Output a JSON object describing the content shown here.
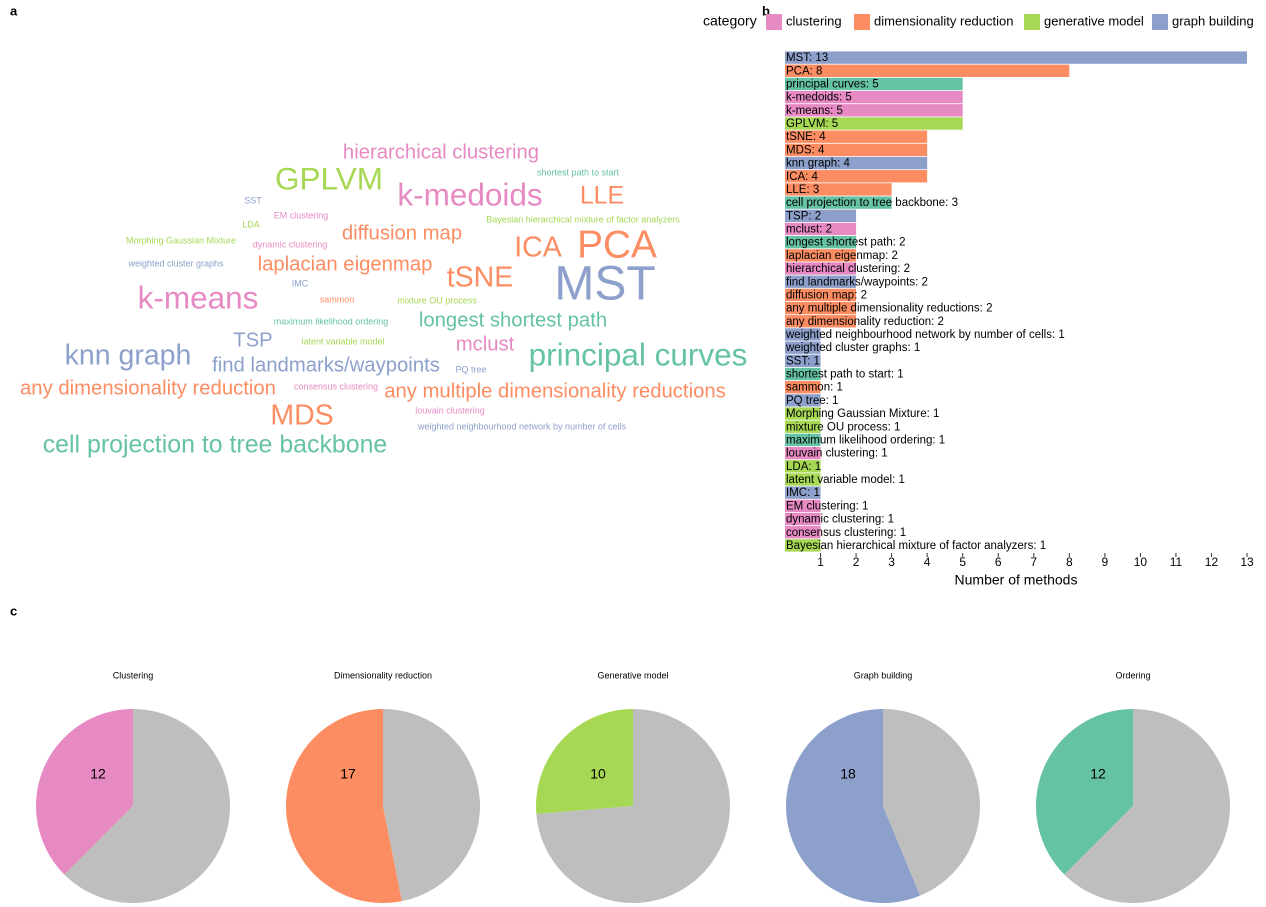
{
  "chart_data": [
    {
      "type": "wordcloud",
      "panel": "a",
      "words": [
        "MST",
        "PCA",
        "principal curves",
        "k-medoids",
        "k-means",
        "GPLVM",
        "tSNE",
        "MDS",
        "knn graph",
        "ICA",
        "LLE",
        "cell projection to tree backbone",
        "TSP",
        "mclust",
        "longest shortest path",
        "laplacian eigenmap",
        "hierarchical clustering",
        "find landmarks/waypoints",
        "diffusion map",
        "any multiple dimensionality reductions",
        "any dimensionality reduction",
        "weighted neighbourhood network by number of cells",
        "weighted cluster graphs",
        "SST",
        "shortest path to start",
        "sammon",
        "PQ tree",
        "Morphing Gaussian Mixture",
        "mixture OU process",
        "maximum likelihood ordering",
        "louvain clustering",
        "LDA",
        "latent variable model",
        "IMC",
        "EM clustering",
        "dynamic clustering",
        "consensus clustering",
        "Bayesian hierarchical mixture of factor analyzers"
      ],
      "values": [
        13,
        8,
        5,
        5,
        5,
        5,
        4,
        4,
        4,
        4,
        3,
        3,
        2,
        2,
        2,
        2,
        2,
        2,
        2,
        2,
        2,
        1,
        1,
        1,
        1,
        1,
        1,
        1,
        1,
        1,
        1,
        1,
        1,
        1,
        1,
        1,
        1,
        1
      ],
      "colors": [
        "#8da0cb",
        "#fc8d62",
        "#66c2a5",
        "#e78ac3",
        "#e78ac3",
        "#a6d854",
        "#fc8d62",
        "#fc8d62",
        "#8da0cb",
        "#fc8d62",
        "#fc8d62",
        "#66c2a5",
        "#8da0cb",
        "#e78ac3",
        "#66c2a5",
        "#fc8d62",
        "#e78ac3",
        "#8da0cb",
        "#fc8d62",
        "#fc8d62",
        "#fc8d62",
        "#8da0cb",
        "#8da0cb",
        "#8da0cb",
        "#66c2a5",
        "#fc8d62",
        "#8da0cb",
        "#a6d854",
        "#a6d854",
        "#66c2a5",
        "#e78ac3",
        "#a6d854",
        "#a6d854",
        "#8da0cb",
        "#e78ac3",
        "#e78ac3",
        "#e78ac3",
        "#a6d854"
      ]
    },
    {
      "type": "barh",
      "panel": "b",
      "values": [
        13,
        8,
        5,
        5,
        5,
        5,
        4,
        4,
        4,
        4,
        3,
        3,
        2,
        2,
        2,
        2,
        2,
        2,
        2,
        2,
        2,
        1,
        1,
        1,
        1,
        1,
        1,
        1,
        1,
        1,
        1,
        1,
        1,
        1,
        1,
        1,
        1,
        1
      ],
      "value_labels": [
        "MST: 13",
        "PCA: 8",
        "principal curves: 5",
        "k-medoids: 5",
        "k-means: 5",
        "GPLVM: 5",
        "tSNE: 4",
        "MDS: 4",
        "knn graph: 4",
        "ICA: 4",
        "LLE: 3",
        "cell projection to tree backbone: 3",
        "TSP: 2",
        "mclust: 2",
        "longest shortest path: 2",
        "laplacian eigenmap: 2",
        "hierarchical clustering: 2",
        "find landmarks/waypoints: 2",
        "diffusion map: 2",
        "any multiple dimensionality reductions: 2",
        "any dimensionality reduction: 2",
        "weighted neighbourhood network by number of cells: 1",
        "weighted cluster graphs: 1",
        "SST: 1",
        "shortest path to start: 1",
        "sammon: 1",
        "PQ tree: 1",
        "Morphing Gaussian Mixture: 1",
        "mixture OU process: 1",
        "maximum likelihood ordering: 1",
        "louvain clustering: 1",
        "LDA: 1",
        "latent variable model: 1",
        "IMC: 1",
        "EM clustering: 1",
        "dynamic clustering: 1",
        "consensus clustering: 1",
        "Bayesian hierarchical mixture of factor analyzers: 1"
      ],
      "colors": [
        "#8da0cb",
        "#fc8d62",
        "#66c2a5",
        "#e78ac3",
        "#e78ac3",
        "#a6d854",
        "#fc8d62",
        "#fc8d62",
        "#8da0cb",
        "#fc8d62",
        "#fc8d62",
        "#66c2a5",
        "#8da0cb",
        "#e78ac3",
        "#66c2a5",
        "#fc8d62",
        "#e78ac3",
        "#8da0cb",
        "#fc8d62",
        "#fc8d62",
        "#fc8d62",
        "#8da0cb",
        "#8da0cb",
        "#8da0cb",
        "#66c2a5",
        "#fc8d62",
        "#8da0cb",
        "#a6d854",
        "#a6d854",
        "#66c2a5",
        "#e78ac3",
        "#a6d854",
        "#a6d854",
        "#8da0cb",
        "#e78ac3",
        "#e78ac3",
        "#e78ac3",
        "#a6d854"
      ],
      "xlim": [
        0,
        13
      ],
      "xticks": [
        1,
        2,
        3,
        4,
        5,
        6,
        7,
        8,
        9,
        10,
        11,
        12,
        13
      ],
      "xlabel": "Number of methods",
      "legend": {
        "title": "category",
        "items": [
          {
            "name": "clustering",
            "color": "#e78ac3"
          },
          {
            "name": "dimensionality reduction",
            "color": "#fc8d62"
          },
          {
            "name": "generative model",
            "color": "#a6d854"
          },
          {
            "name": "graph building",
            "color": "#8da0cb"
          }
        ]
      }
    },
    {
      "type": "pie",
      "panel": "c",
      "title": "Clustering",
      "values": [
        12,
        20
      ],
      "colors": [
        "#e78ac3",
        "#bebebe"
      ]
    },
    {
      "type": "pie",
      "title": "Dimensionality reduction",
      "values": [
        17,
        15
      ],
      "colors": [
        "#fc8d62",
        "#bebebe"
      ]
    },
    {
      "type": "pie",
      "title": "Generative model",
      "values": [
        10,
        28
      ],
      "colors": [
        "#a6d854",
        "#bebebe"
      ]
    },
    {
      "type": "pie",
      "title": "Graph building",
      "values": [
        18,
        14
      ],
      "colors": [
        "#8da0cb",
        "#bebebe"
      ]
    },
    {
      "type": "pie",
      "title": "Ordering",
      "values": [
        12,
        20
      ],
      "colors": [
        "#66c2a5",
        "#bebebe"
      ]
    }
  ]
}
